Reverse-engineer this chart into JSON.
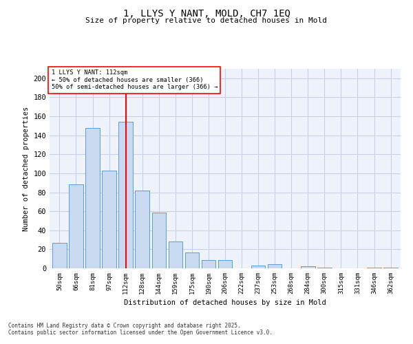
{
  "title": "1, LLYS Y NANT, MOLD, CH7 1EQ",
  "subtitle": "Size of property relative to detached houses in Mold",
  "xlabel": "Distribution of detached houses by size in Mold",
  "ylabel": "Number of detached properties",
  "categories": [
    "50sqm",
    "66sqm",
    "81sqm",
    "97sqm",
    "112sqm",
    "128sqm",
    "144sqm",
    "159sqm",
    "175sqm",
    "190sqm",
    "206sqm",
    "222sqm",
    "237sqm",
    "253sqm",
    "268sqm",
    "284sqm",
    "300sqm",
    "315sqm",
    "331sqm",
    "346sqm",
    "362sqm"
  ],
  "values": [
    27,
    88,
    148,
    103,
    154,
    82,
    59,
    28,
    17,
    9,
    9,
    0,
    3,
    4,
    0,
    2,
    1,
    0,
    0,
    1,
    1
  ],
  "bar_color": "#c9d9f0",
  "bar_edge_color": "#5b9bd5",
  "red_line_index": 4,
  "annotation_title": "1 LLYS Y NANT: 112sqm",
  "annotation_line1": "← 50% of detached houses are smaller (366)",
  "annotation_line2": "50% of semi-detached houses are larger (366) →",
  "ylim": [
    0,
    210
  ],
  "yticks": [
    0,
    20,
    40,
    60,
    80,
    100,
    120,
    140,
    160,
    180,
    200
  ],
  "bg_color": "#eef2fb",
  "grid_color": "#c8d0e8",
  "footer1": "Contains HM Land Registry data © Crown copyright and database right 2025.",
  "footer2": "Contains public sector information licensed under the Open Government Licence v3.0."
}
